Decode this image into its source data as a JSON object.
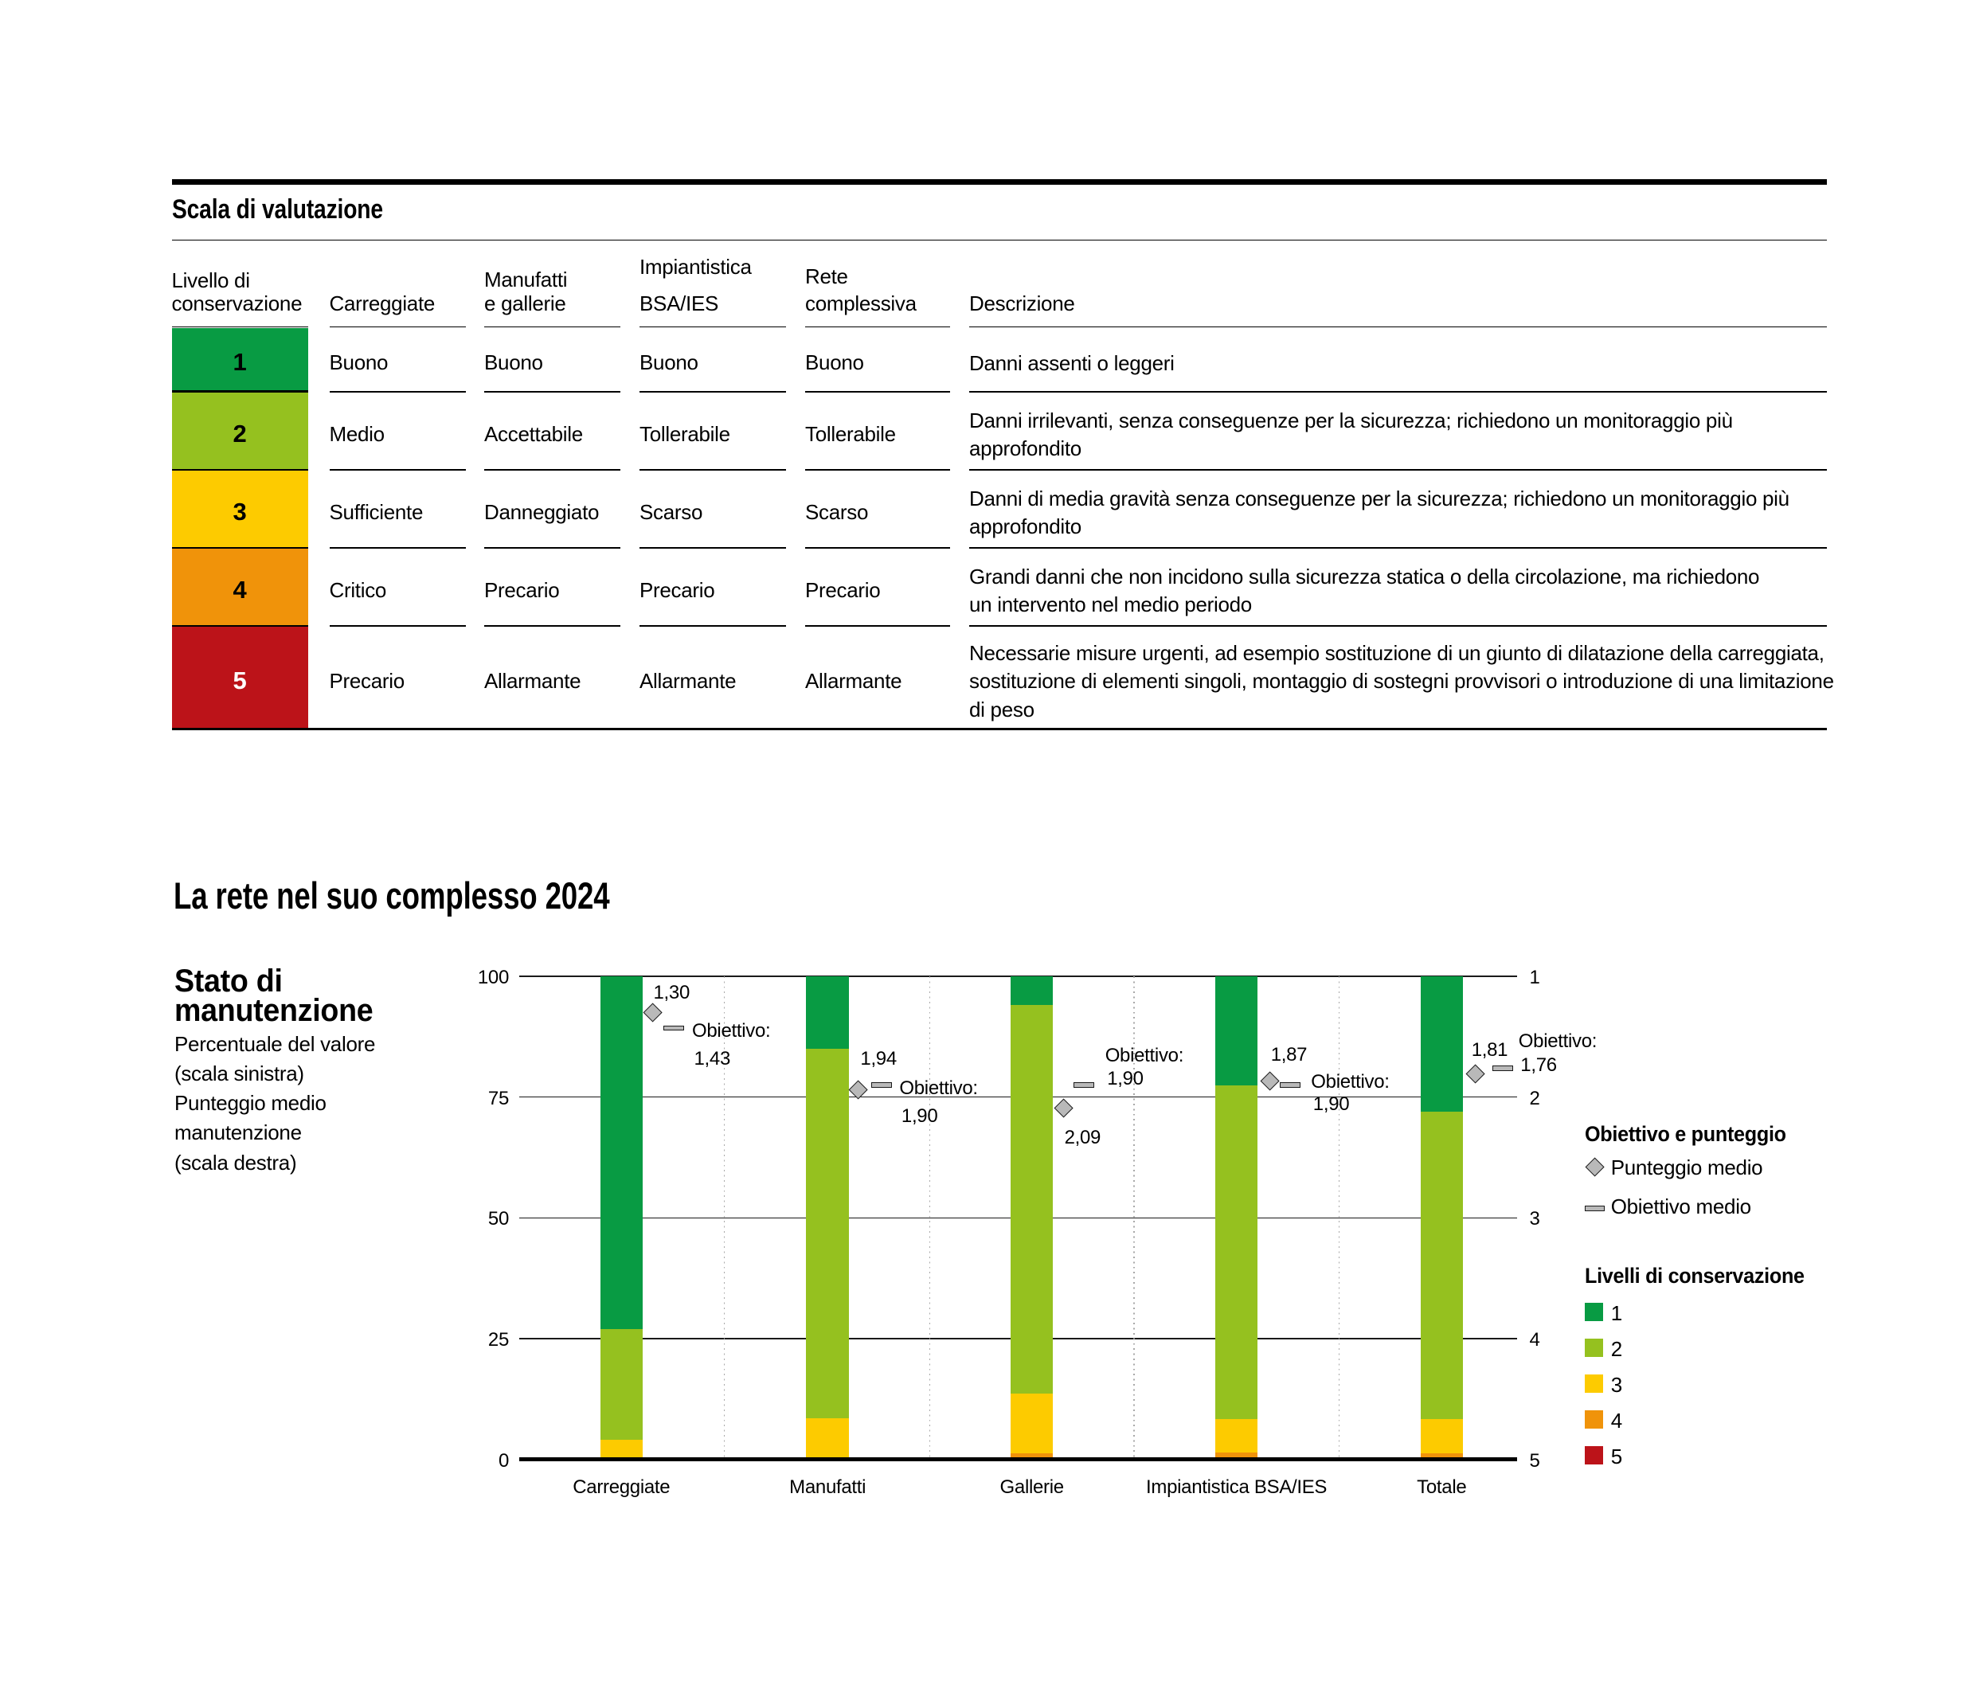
{
  "colors": {
    "level1": "#089B43",
    "level2": "#95C11F",
    "level3": "#FDCB00",
    "level4": "#F0930A",
    "level5": "#BC1319",
    "marker_fill": "#B9B9B9",
    "marker_stroke": "#1A1A1A",
    "grid_line": "#1A1A1A",
    "dotted_line": "#A8A8A8",
    "rule": "#000000",
    "text": "#000000",
    "level5_text": "#FFFFFF"
  },
  "table": {
    "title": "Scala di valutazione",
    "columns": [
      {
        "id": "livello",
        "header_lines": [
          "Livello di",
          "conservazione"
        ]
      },
      {
        "id": "carreggiate",
        "header_lines": [
          "Carreggiate"
        ]
      },
      {
        "id": "manufatti",
        "header_lines": [
          "Manufatti",
          "e gallerie"
        ]
      },
      {
        "id": "impiantistica",
        "header_lines": [
          "Impiantistica",
          "BSA/IES"
        ]
      },
      {
        "id": "rete",
        "header_lines": [
          "Rete",
          "complessiva"
        ]
      },
      {
        "id": "descrizione",
        "header_lines": [
          "Descrizione"
        ]
      }
    ],
    "rows": [
      {
        "level": "1",
        "level_color": "level1",
        "cells": [
          "Buono",
          "Buono",
          "Buono",
          "Buono"
        ],
        "descrizione_lines": [
          "Danni assenti o leggeri"
        ]
      },
      {
        "level": "2",
        "level_color": "level2",
        "cells": [
          "Medio",
          "Accettabile",
          "Tollerabile",
          "Tollerabile"
        ],
        "descrizione_lines": [
          "Danni irrilevanti, senza conseguenze per la sicurezza; richiedono un monitoraggio più",
          "approfondito"
        ]
      },
      {
        "level": "3",
        "level_color": "level3",
        "cells": [
          "Sufficiente",
          "Danneggiato",
          "Scarso",
          "Scarso"
        ],
        "descrizione_lines": [
          "Danni di media gravità senza conseguenze per la sicurezza; richiedono un monitoraggio più",
          "approfondito"
        ]
      },
      {
        "level": "4",
        "level_color": "level4",
        "cells": [
          "Critico",
          "Precario",
          "Precario",
          "Precario"
        ],
        "descrizione_lines": [
          "Grandi danni che non incidono sulla sicurezza statica o della circolazione, ma richiedono",
          "un intervento nel medio periodo"
        ]
      },
      {
        "level": "5",
        "level_color": "level5",
        "cells": [
          "Precario",
          "Allarmante",
          "Allarmante",
          "Allarmante"
        ],
        "descrizione_lines": [
          "Necessarie misure urgenti, ad esempio sostituzione di un giunto di dilatazione della carreggiata,",
          "sostituzione di elementi singoli, montaggio di sostegni provvisori o introduzione di una limitazione",
          "di peso"
        ]
      }
    ]
  },
  "section_title": "La rete nel suo complesso 2024",
  "chart_data": {
    "type": "bar",
    "stacked": true,
    "title": "La rete nel suo complesso 2024",
    "left_label_bold_lines": [
      "Stato di",
      "manutenzione"
    ],
    "left_label_lines": [
      "Percentuale del valore",
      "(scala sinistra)",
      "Punteggio medio",
      "manutenzione",
      "(scala destra)"
    ],
    "categories": [
      "Carreggiate",
      "Manufatti",
      "Gallerie",
      "Impiantistica BSA/IES",
      "Totale"
    ],
    "series": [
      {
        "name": "1",
        "level": "level1",
        "values": [
          73,
          15,
          6,
          22.5,
          28
        ]
      },
      {
        "name": "2",
        "level": "level2",
        "values": [
          23,
          76.5,
          80.3,
          69.2,
          63.6
        ]
      },
      {
        "name": "3",
        "level": "level3",
        "values": [
          4,
          8,
          12.5,
          6.8,
          7.2
        ]
      },
      {
        "name": "4",
        "level": "level4",
        "values": [
          0,
          0.5,
          1.0,
          1.2,
          1.0
        ]
      },
      {
        "name": "5",
        "level": "level5",
        "values": [
          0,
          0,
          0.2,
          0.3,
          0.2
        ]
      }
    ],
    "punteggio_medio": [
      1.3,
      1.94,
      2.09,
      1.87,
      1.81
    ],
    "obiettivo_medio": [
      1.43,
      1.9,
      1.9,
      1.9,
      1.76
    ],
    "punteggio_labels": [
      "1,30",
      "1,94",
      "2,09",
      "1,87",
      "1,81"
    ],
    "obiettivo_prefix": "Obiettivo:",
    "obiettivo_labels": [
      "1,43",
      "1,90",
      "1,90",
      "1,90",
      "1,76"
    ],
    "left_axis_ticks": [
      "100",
      "75",
      "50",
      "25",
      "0"
    ],
    "right_axis_ticks": [
      "1",
      "2",
      "3",
      "4",
      "5"
    ],
    "ylim_left": [
      0,
      100
    ],
    "ylim_right": [
      5,
      1
    ],
    "legend": {
      "markers_title": "Obiettivo e punteggio",
      "punteggio_label": "Punteggio medio",
      "obiettivo_label": "Obiettivo medio",
      "levels_title": "Livelli di conservazione",
      "levels": [
        {
          "label": "1",
          "level": "level1"
        },
        {
          "label": "2",
          "level": "level2"
        },
        {
          "label": "3",
          "level": "level3"
        },
        {
          "label": "4",
          "level": "level4"
        },
        {
          "label": "5",
          "level": "level5"
        }
      ]
    }
  }
}
